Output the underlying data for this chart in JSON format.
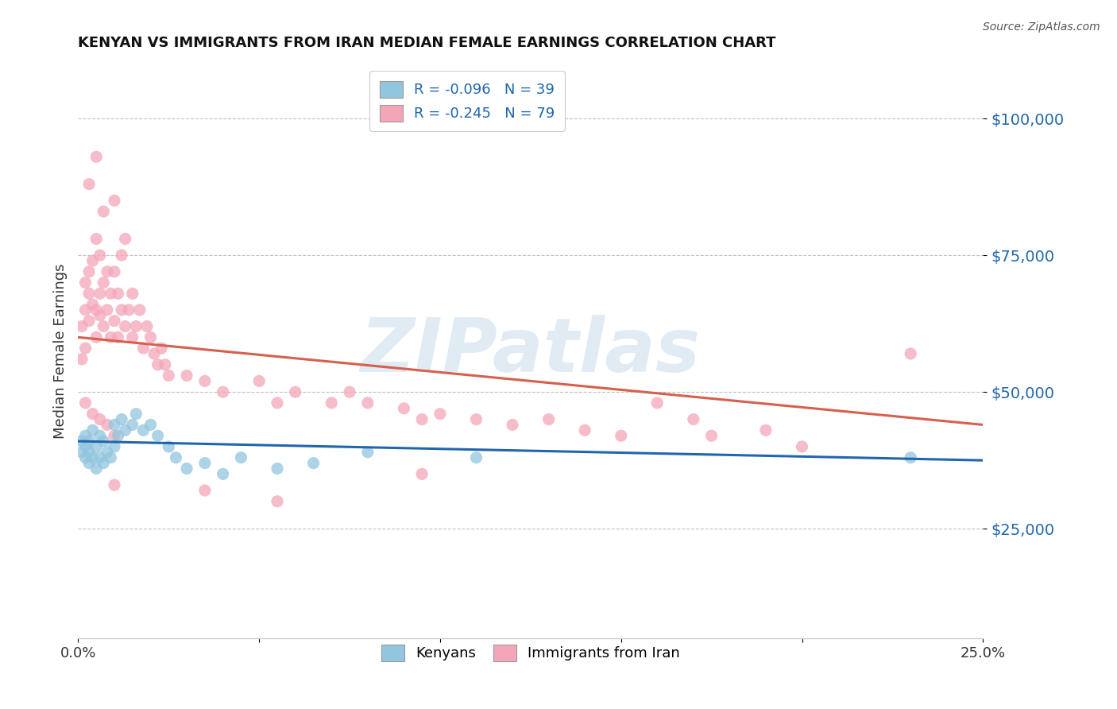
{
  "title": "KENYAN VS IMMIGRANTS FROM IRAN MEDIAN FEMALE EARNINGS CORRELATION CHART",
  "source": "Source: ZipAtlas.com",
  "ylabel": "Median Female Earnings",
  "ytick_labels": [
    "$25,000",
    "$50,000",
    "$75,000",
    "$100,000"
  ],
  "ytick_values": [
    25000,
    50000,
    75000,
    100000
  ],
  "xlim": [
    0.0,
    0.25
  ],
  "ylim": [
    5000,
    110000
  ],
  "legend_line1": "R = -0.096   N = 39",
  "legend_line2": "R = -0.245   N = 79",
  "color_kenyan": "#92c5de",
  "color_iran": "#f4a6b8",
  "color_line_kenyan": "#2166ac",
  "color_line_iran": "#d6604d",
  "kenyan_scatter_x": [
    0.001,
    0.001,
    0.002,
    0.002,
    0.002,
    0.003,
    0.003,
    0.003,
    0.004,
    0.004,
    0.005,
    0.005,
    0.006,
    0.006,
    0.007,
    0.007,
    0.008,
    0.009,
    0.01,
    0.01,
    0.011,
    0.012,
    0.013,
    0.015,
    0.016,
    0.018,
    0.02,
    0.022,
    0.025,
    0.027,
    0.03,
    0.035,
    0.04,
    0.045,
    0.055,
    0.065,
    0.08,
    0.11,
    0.23
  ],
  "kenyan_scatter_y": [
    39000,
    41000,
    38000,
    40000,
    42000,
    37000,
    39000,
    41000,
    38000,
    43000,
    36000,
    40000,
    38000,
    42000,
    37000,
    41000,
    39000,
    38000,
    40000,
    44000,
    42000,
    45000,
    43000,
    44000,
    46000,
    43000,
    44000,
    42000,
    40000,
    38000,
    36000,
    37000,
    35000,
    38000,
    36000,
    37000,
    39000,
    38000,
    38000
  ],
  "iran_scatter_x": [
    0.001,
    0.001,
    0.002,
    0.002,
    0.002,
    0.003,
    0.003,
    0.003,
    0.004,
    0.004,
    0.005,
    0.005,
    0.005,
    0.006,
    0.006,
    0.006,
    0.007,
    0.007,
    0.008,
    0.008,
    0.009,
    0.009,
    0.01,
    0.01,
    0.011,
    0.011,
    0.012,
    0.012,
    0.013,
    0.014,
    0.015,
    0.015,
    0.016,
    0.017,
    0.018,
    0.019,
    0.02,
    0.021,
    0.022,
    0.023,
    0.024,
    0.025,
    0.03,
    0.035,
    0.04,
    0.05,
    0.055,
    0.06,
    0.07,
    0.075,
    0.08,
    0.09,
    0.095,
    0.1,
    0.11,
    0.12,
    0.13,
    0.14,
    0.15,
    0.16,
    0.17,
    0.175,
    0.19,
    0.2,
    0.003,
    0.005,
    0.007,
    0.01,
    0.013,
    0.002,
    0.004,
    0.006,
    0.008,
    0.01,
    0.01,
    0.035,
    0.055,
    0.095,
    0.23
  ],
  "iran_scatter_y": [
    56000,
    62000,
    58000,
    65000,
    70000,
    63000,
    68000,
    72000,
    66000,
    74000,
    60000,
    65000,
    78000,
    64000,
    68000,
    75000,
    62000,
    70000,
    65000,
    72000,
    60000,
    68000,
    63000,
    72000,
    60000,
    68000,
    65000,
    75000,
    62000,
    65000,
    60000,
    68000,
    62000,
    65000,
    58000,
    62000,
    60000,
    57000,
    55000,
    58000,
    55000,
    53000,
    53000,
    52000,
    50000,
    52000,
    48000,
    50000,
    48000,
    50000,
    48000,
    47000,
    45000,
    46000,
    45000,
    44000,
    45000,
    43000,
    42000,
    48000,
    45000,
    42000,
    43000,
    40000,
    88000,
    93000,
    83000,
    85000,
    78000,
    48000,
    46000,
    45000,
    44000,
    42000,
    33000,
    32000,
    30000,
    35000,
    57000
  ],
  "kenyan_trend_x": [
    0.0,
    0.25
  ],
  "kenyan_trend_y": [
    41000,
    37500
  ],
  "iran_trend_x": [
    0.0,
    0.25
  ],
  "iran_trend_y": [
    60000,
    44000
  ]
}
